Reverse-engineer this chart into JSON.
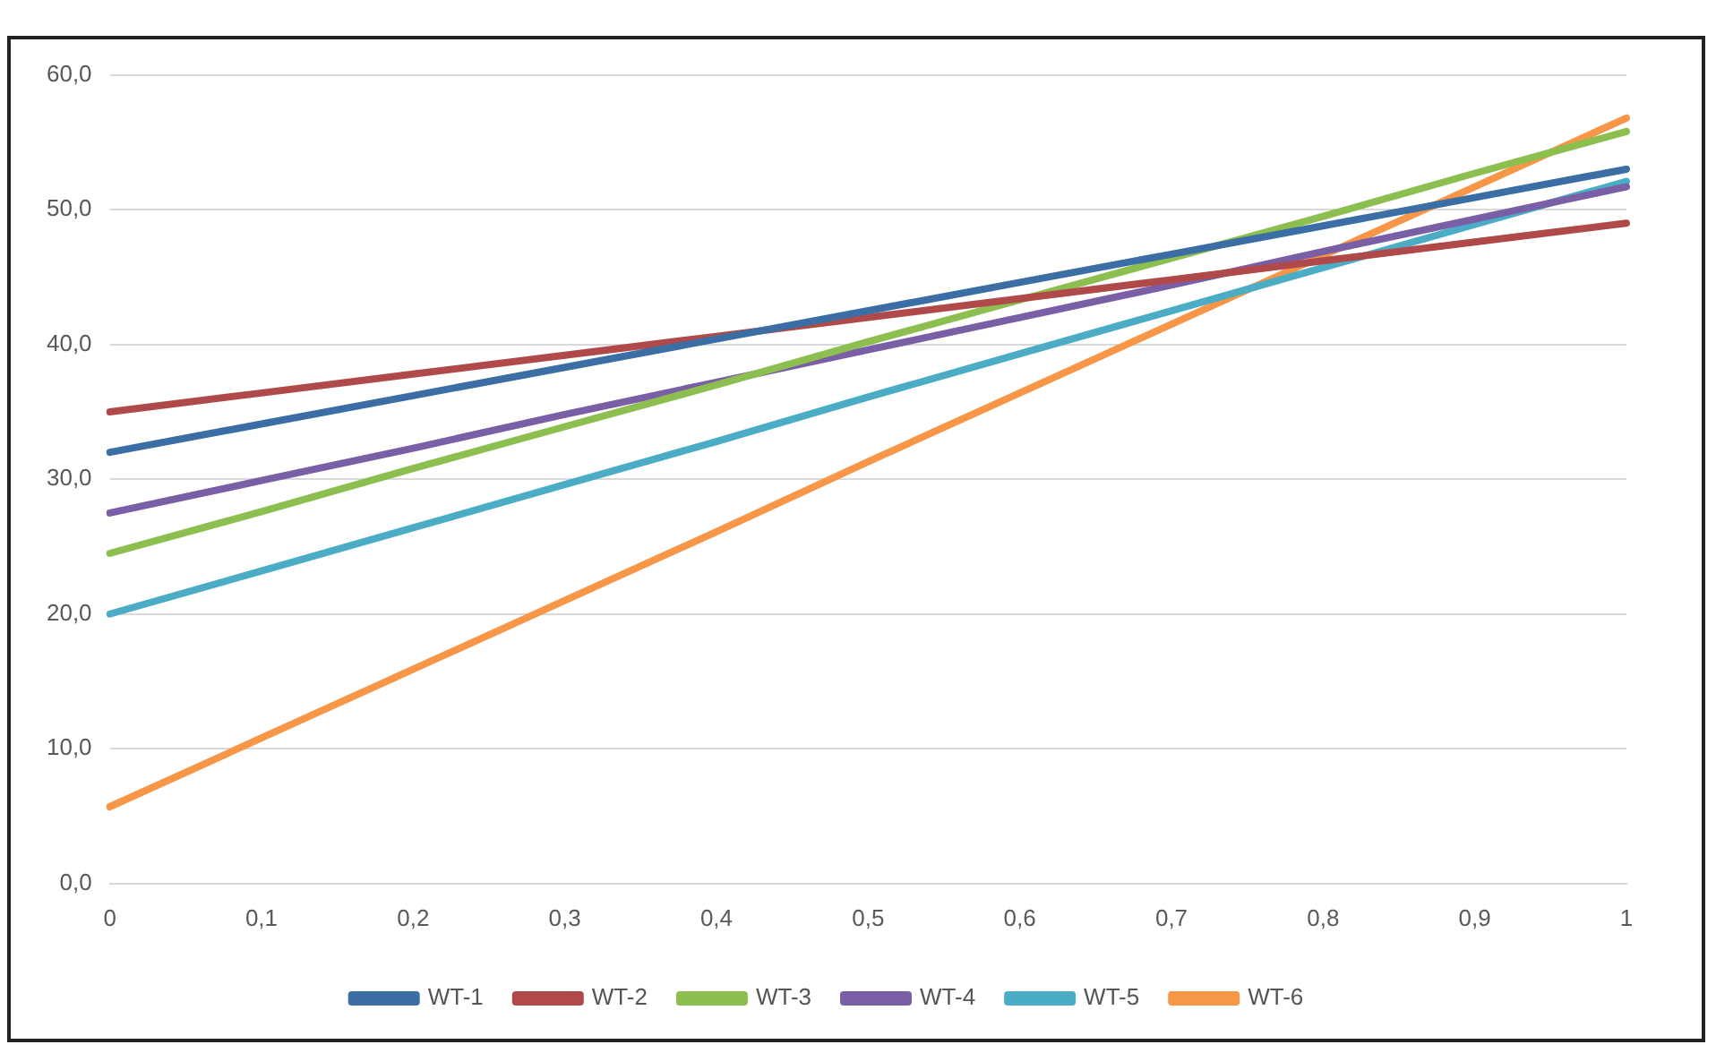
{
  "chart_data": {
    "type": "line",
    "categories": [
      "0",
      "0,1",
      "0,2",
      "0,3",
      "0,4",
      "0,5",
      "0,6",
      "0,7",
      "0,8",
      "0,9",
      "1"
    ],
    "series": [
      {
        "name": "WT-1",
        "color": "#3a6ea5",
        "values": [
          32.0,
          34.1,
          36.2,
          38.3,
          40.4,
          42.5,
          44.6,
          46.7,
          48.8,
          50.9,
          53.0
        ]
      },
      {
        "name": "WT-2",
        "color": "#b04a4a",
        "values": [
          35.0,
          36.4,
          37.8,
          39.2,
          40.6,
          42.0,
          43.4,
          44.8,
          46.2,
          47.6,
          49.0
        ]
      },
      {
        "name": "WT-3",
        "color": "#8cbf4f",
        "values": [
          24.5,
          27.6,
          30.8,
          33.9,
          37.0,
          40.2,
          43.3,
          46.4,
          49.5,
          52.7,
          55.8
        ]
      },
      {
        "name": "WT-4",
        "color": "#7a5ea6",
        "values": [
          27.5,
          29.9,
          32.3,
          34.8,
          37.2,
          39.6,
          42.0,
          44.4,
          46.9,
          49.3,
          51.7
        ]
      },
      {
        "name": "WT-5",
        "color": "#4bacc6",
        "values": [
          20.0,
          23.2,
          26.4,
          29.6,
          32.8,
          36.1,
          39.3,
          42.5,
          45.7,
          48.9,
          52.1
        ]
      },
      {
        "name": "WT-6",
        "color": "#f79646",
        "values": [
          5.7,
          10.8,
          15.9,
          21.0,
          26.1,
          31.3,
          36.4,
          41.5,
          46.6,
          51.7,
          56.8
        ]
      }
    ],
    "ylim": [
      0,
      60
    ],
    "yticks": [
      {
        "value": 0,
        "label": "0,0"
      },
      {
        "value": 10,
        "label": "10,0"
      },
      {
        "value": 20,
        "label": "20,0"
      },
      {
        "value": 30,
        "label": "30,0"
      },
      {
        "value": 40,
        "label": "40,0"
      },
      {
        "value": 50,
        "label": "50,0"
      },
      {
        "value": 60,
        "label": "60,0"
      }
    ],
    "grid": "y",
    "legend": "bottom",
    "marker": "none",
    "line_style": "solid"
  }
}
